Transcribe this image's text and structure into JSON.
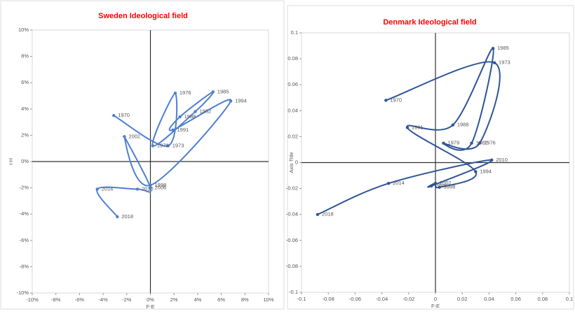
{
  "chart_data": [
    {
      "type": "line",
      "title": "Sweden Ideological field",
      "x_label": "F-E",
      "y_label": "I-H",
      "color": "#4f7fd0",
      "x": [
        -3.1,
        1.5,
        2.1,
        0.2,
        3.8,
        5.3,
        2.5,
        1.9,
        6.8,
        0,
        -2.2,
        0,
        -1.1,
        -4.5,
        -2.8
      ],
      "values": [
        3.5,
        1.2,
        5.2,
        1.2,
        3.8,
        5.3,
        3.4,
        2.4,
        4.6,
        -1.8,
        1.9,
        -2.0,
        -2.1,
        -2.1,
        -4.2
      ],
      "labels": [
        "1970",
        "1973",
        "1976",
        "1979",
        "1982",
        "1985",
        "1988",
        "1991",
        "1994",
        "1998",
        "2002",
        "2006",
        "2010",
        "2014",
        "2018"
      ],
      "xlim": [
        -10,
        10
      ],
      "ylim": [
        -10,
        10
      ],
      "xticks": [
        {
          "value": -10,
          "label": "-10%"
        },
        {
          "value": -8,
          "label": "-8%"
        },
        {
          "value": -6,
          "label": "-6%"
        },
        {
          "value": -4,
          "label": "-4%"
        },
        {
          "value": -2,
          "label": "-2%"
        },
        {
          "value": 0,
          "label": "0%"
        },
        {
          "value": 2,
          "label": "2%"
        },
        {
          "value": 4,
          "label": "4%"
        },
        {
          "value": 6,
          "label": "6%"
        },
        {
          "value": 8,
          "label": "8%"
        },
        {
          "value": 10,
          "label": "10%"
        }
      ],
      "yticks": [
        {
          "value": -10,
          "label": "-10%"
        },
        {
          "value": -8,
          "label": "-8%"
        },
        {
          "value": -6,
          "label": "-6%"
        },
        {
          "value": -4,
          "label": "-4%"
        },
        {
          "value": -2,
          "label": "-2%"
        },
        {
          "value": 0,
          "label": "0%"
        },
        {
          "value": 2,
          "label": "2%"
        },
        {
          "value": 4,
          "label": "4%"
        },
        {
          "value": 6,
          "label": "6%"
        },
        {
          "value": 8,
          "label": "8%"
        },
        {
          "value": 10,
          "label": "10%"
        }
      ]
    },
    {
      "type": "line",
      "title": "Denmark Ideological field",
      "x_label": "F-E",
      "y_label": "Axis Title",
      "color": "#2f5597",
      "x": [
        -0.037,
        0.044,
        0.033,
        0.006,
        0.027,
        0.043,
        0.013,
        -0.021,
        0.03,
        0.003,
        0,
        -0.003,
        0.042,
        -0.035,
        -0.088
      ],
      "values": [
        0.048,
        0.077,
        0.015,
        0.015,
        0.015,
        0.088,
        0.029,
        0.027,
        -0.007,
        -0.019,
        -0.016,
        -0.018,
        0.002,
        -0.016,
        -0.04
      ],
      "labels": [
        "1970",
        "1973",
        "1976",
        "1979",
        "1982",
        "1985",
        "1988",
        "1991",
        "1994",
        "1998",
        "2002",
        "2006",
        "2010",
        "2014",
        "2018"
      ],
      "xlim": [
        -0.1,
        0.1
      ],
      "ylim": [
        -0.1,
        0.1
      ],
      "xticks": [
        -0.1,
        -0.08,
        -0.06,
        -0.04,
        -0.02,
        0,
        0.02,
        0.04,
        0.06,
        0.08,
        0.1
      ],
      "yticks": [
        -0.1,
        -0.08,
        -0.06,
        -0.04,
        -0.02,
        0,
        0.02,
        0.04,
        0.06,
        0.08,
        0.1
      ]
    }
  ]
}
